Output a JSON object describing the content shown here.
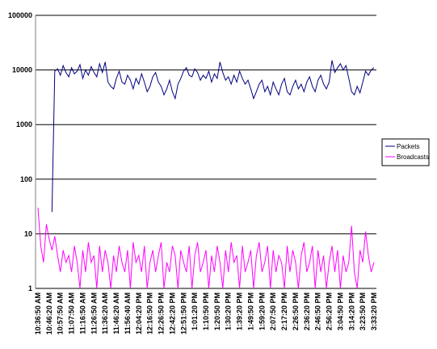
{
  "chart_data": {
    "type": "line",
    "log_scale": true,
    "grid": true,
    "legend": "right",
    "ylim": [
      1,
      100000
    ],
    "yticks": [
      1,
      10,
      100,
      1000,
      10000,
      100000
    ],
    "categories": [
      "10:36:50 AM",
      null,
      null,
      null,
      "10:46:20 AM",
      null,
      null,
      null,
      "10:57:50 AM",
      null,
      null,
      null,
      "11:07:50 AM",
      null,
      null,
      null,
      "11:16:50 AM",
      null,
      null,
      null,
      "11:26:50 AM",
      null,
      null,
      null,
      "11:36:20 AM",
      null,
      null,
      null,
      "11:46:20 AM",
      null,
      null,
      null,
      "11:56:40 AM",
      null,
      null,
      null,
      "12:04:20 PM",
      null,
      null,
      null,
      "12:16:50 PM",
      null,
      null,
      null,
      "12:26:50 PM",
      null,
      null,
      null,
      "12:42:20 PM",
      null,
      null,
      null,
      "12:51:50 PM",
      null,
      null,
      null,
      "1:01:20 PM",
      null,
      null,
      null,
      "1:10:50 PM",
      null,
      null,
      null,
      "1:20:50 PM",
      null,
      null,
      null,
      "1:30:20 PM",
      null,
      null,
      null,
      "1:39:20 PM",
      null,
      null,
      null,
      "1:49:50 PM",
      null,
      null,
      null,
      "1:59:20 PM",
      null,
      null,
      null,
      "2:07:50 PM",
      null,
      null,
      null,
      "2:17:20 PM",
      null,
      null,
      null,
      "2:26:50 PM",
      null,
      null,
      null,
      "2:36:20 PM",
      null,
      null,
      null,
      "2:46:50 PM",
      null,
      null,
      null,
      "2:56:20 PM",
      null,
      null,
      null,
      "3:04:50 PM",
      null,
      null,
      null,
      "3:14:20 PM",
      null,
      null,
      null,
      "3:23:50 PM",
      null,
      null,
      null,
      "3:33:20 PM"
    ],
    "series": [
      {
        "name": "Packets",
        "color": "#000080",
        "values": [
          null,
          null,
          null,
          null,
          null,
          25,
          9500,
          10500,
          8000,
          12000,
          9000,
          7500,
          11000,
          8500,
          9500,
          12500,
          7000,
          10000,
          8000,
          11500,
          9000,
          7500,
          13000,
          9000,
          14000,
          6000,
          5000,
          4500,
          7000,
          9500,
          6000,
          5500,
          8000,
          6500,
          4500,
          7000,
          5500,
          8500,
          6000,
          4000,
          5000,
          7500,
          9000,
          6000,
          5000,
          3500,
          4500,
          6500,
          4000,
          3000,
          5500,
          7000,
          9500,
          11000,
          8000,
          7500,
          10500,
          9000,
          6500,
          8000,
          7000,
          9500,
          6000,
          8500,
          7000,
          14000,
          9000,
          6500,
          7500,
          5500,
          8000,
          6000,
          9500,
          7000,
          5500,
          6500,
          4500,
          3000,
          4000,
          5500,
          6500,
          4000,
          5000,
          3500,
          6000,
          4500,
          3500,
          5500,
          7000,
          4000,
          3500,
          5000,
          6500,
          4500,
          5500,
          4000,
          6000,
          7500,
          5000,
          4000,
          6500,
          8000,
          5500,
          4500,
          6000,
          15000,
          9000,
          11000,
          13000,
          10000,
          12000,
          7000,
          4000,
          3500,
          5000,
          3800,
          6000,
          9500,
          8000,
          10000,
          11000
        ]
      },
      {
        "name": "Broadcasts",
        "color": "#ff00ff",
        "values": [
          30,
          6,
          3,
          15,
          8,
          5,
          9,
          4,
          2,
          5,
          3,
          4,
          2,
          6,
          3,
          1,
          5,
          2,
          7,
          3,
          4,
          1,
          6,
          2,
          5,
          3,
          1,
          4,
          2,
          6,
          3,
          2,
          5,
          1,
          7,
          3,
          4,
          2,
          6,
          1,
          3,
          5,
          2,
          4,
          7,
          1,
          3,
          2,
          6,
          4,
          1,
          5,
          3,
          2,
          6,
          1,
          4,
          7,
          2,
          3,
          5,
          1,
          4,
          2,
          6,
          3,
          1,
          5,
          2,
          7,
          3,
          4,
          1,
          6,
          2,
          3,
          5,
          1,
          4,
          7,
          2,
          3,
          6,
          1,
          5,
          2,
          4,
          3,
          1,
          6,
          2,
          5,
          3,
          1,
          4,
          7,
          2,
          3,
          6,
          1,
          5,
          2,
          4,
          1,
          3,
          6,
          2,
          5,
          1,
          4,
          2,
          3,
          14,
          2,
          1,
          5,
          3,
          11,
          4,
          2,
          3
        ]
      }
    ]
  }
}
